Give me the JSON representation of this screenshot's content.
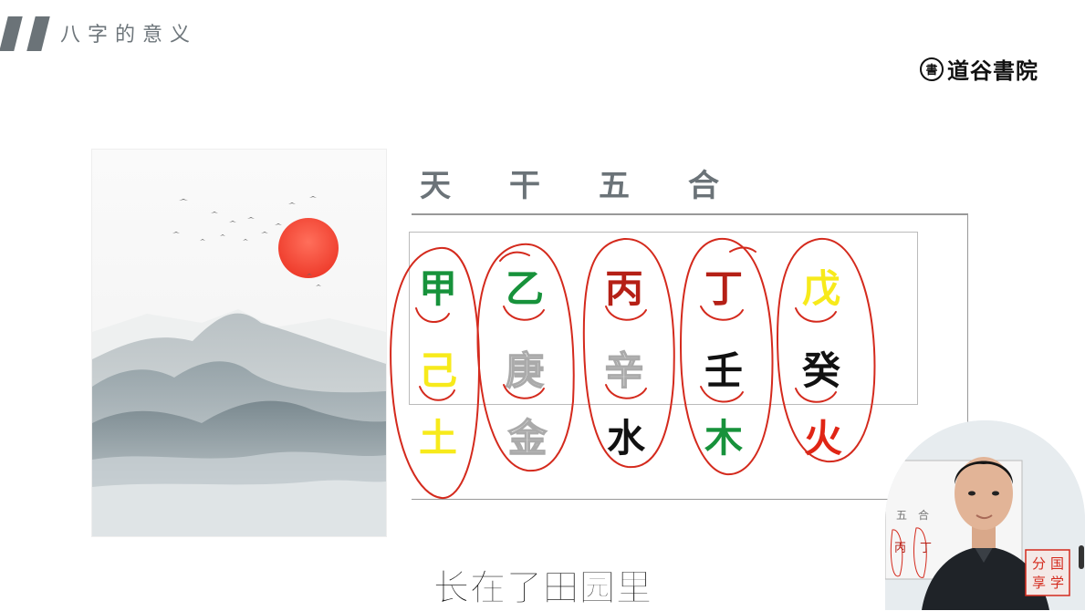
{
  "header": {
    "title": "八字的意义"
  },
  "logo": {
    "seal_char": "書",
    "name": "道谷書院"
  },
  "section": {
    "title": [
      "天",
      "干",
      "五",
      "合"
    ]
  },
  "pairs": [
    {
      "top": "甲",
      "top_color": "#17923b",
      "bottom": "己",
      "bottom_color": "#f7ea1b",
      "result": "土",
      "result_color": "#f7ea1b"
    },
    {
      "top": "乙",
      "top_color": "#17923b",
      "bottom": "庚",
      "bottom_color": "outline",
      "result": "金",
      "result_color": "outline"
    },
    {
      "top": "丙",
      "top_color": "#b52016",
      "bottom": "辛",
      "bottom_color": "outline",
      "result": "水",
      "result_color": "#111111"
    },
    {
      "top": "丁",
      "top_color": "#b52016",
      "bottom": "壬",
      "bottom_color": "#111111",
      "result": "木",
      "result_color": "#17923b"
    },
    {
      "top": "戊",
      "top_color": "#f7ea1b",
      "bottom": "癸",
      "bottom_color": "#111111",
      "result": "火",
      "result_color": "#e02515"
    }
  ],
  "webcam": {
    "bg_text_a": "五",
    "bg_text_b": "合",
    "bg_text_c": "丙",
    "bg_text_d": "丁",
    "stamp": [
      "分",
      "国",
      "享",
      "学"
    ]
  },
  "subtitle": "长在了田园里",
  "colors": {
    "ink_red": "#d42a1d",
    "header_gray": "#6b7378"
  }
}
